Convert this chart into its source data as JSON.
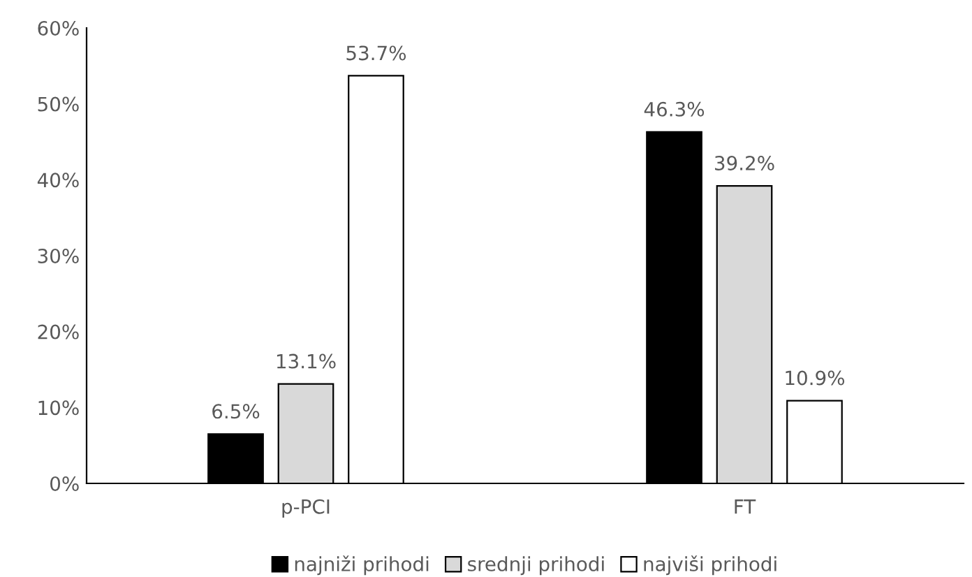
{
  "chart_data": {
    "type": "bar",
    "categories": [
      "p-PCI",
      "FT"
    ],
    "series": [
      {
        "name": "najniži prihodi",
        "color": "#000000",
        "values": [
          6.5,
          46.3
        ],
        "value_labels": [
          "6.5%",
          "46.3%"
        ]
      },
      {
        "name": "srednji prihodi",
        "color": "#d9d9d9",
        "values": [
          13.1,
          39.2
        ],
        "value_labels": [
          "13.1%",
          "39.2%"
        ]
      },
      {
        "name": "najviši prihodi",
        "color": "#ffffff",
        "values": [
          53.7,
          10.9
        ],
        "value_labels": [
          "53.7%",
          "10.9%"
        ]
      }
    ],
    "ylim": [
      0,
      60
    ],
    "yticks": [
      {
        "value": 0,
        "label": "0%"
      },
      {
        "value": 10,
        "label": "10%"
      },
      {
        "value": 20,
        "label": "20%"
      },
      {
        "value": 30,
        "label": "30%"
      },
      {
        "value": 40,
        "label": "40%"
      },
      {
        "value": 50,
        "label": "50%"
      },
      {
        "value": 60,
        "label": "60%"
      }
    ],
    "grid": false,
    "legend": "bottom"
  }
}
